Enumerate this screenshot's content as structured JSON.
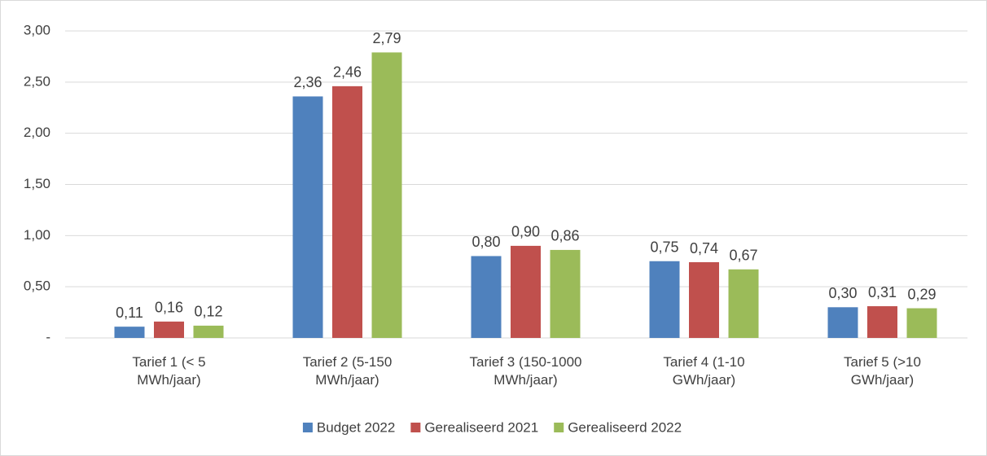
{
  "chart_data": {
    "type": "bar",
    "categories": [
      "Tarief 1 (< 5 MWh/jaar)",
      "Tarief 2 (5-150 MWh/jaar)",
      "Tarief 3 (150-1000 MWh/jaar)",
      "Tarief 4 (1-10 GWh/jaar)",
      "Tarief 5 (>10 GWh/jaar)"
    ],
    "series": [
      {
        "name": "Budget 2022",
        "color": "#4f81bd",
        "values": [
          0.11,
          2.36,
          0.8,
          0.75,
          0.3
        ],
        "value_labels": [
          "0,11",
          "2,36",
          "0,80",
          "0,75",
          "0,30"
        ]
      },
      {
        "name": "Gerealiseerd 2021",
        "color": "#c0504d",
        "values": [
          0.16,
          2.46,
          0.9,
          0.74,
          0.31
        ],
        "value_labels": [
          "0,16",
          "2,46",
          "0,90",
          "0,74",
          "0,31"
        ]
      },
      {
        "name": "Gerealiseerd 2022",
        "color": "#9bbb59",
        "values": [
          0.12,
          2.79,
          0.86,
          0.67,
          0.29
        ],
        "value_labels": [
          "0,12",
          "2,79",
          "0,86",
          "0,67",
          "0,29"
        ]
      }
    ],
    "ylim": [
      0,
      3
    ],
    "yticks": [
      {
        "value": 0,
        "label": "-"
      },
      {
        "value": 0.5,
        "label": "0,50"
      },
      {
        "value": 1,
        "label": "1,00"
      },
      {
        "value": 1.5,
        "label": "1,50"
      },
      {
        "value": 2,
        "label": "2,00"
      },
      {
        "value": 2.5,
        "label": "2,50"
      },
      {
        "value": 3,
        "label": "3,00"
      }
    ],
    "grid": true,
    "legend": "bottom"
  }
}
